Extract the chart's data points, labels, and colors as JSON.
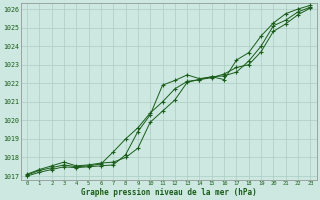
{
  "title": "Graphe pression niveau de la mer (hPa)",
  "bg_color": "#cce8e0",
  "grid_color": "#aaccc4",
  "line_color": "#1a5c1a",
  "marker_color": "#1a5c1a",
  "xlim": [
    -0.5,
    23.5
  ],
  "ylim": [
    1016.8,
    1026.3
  ],
  "xticks": [
    0,
    1,
    2,
    3,
    4,
    5,
    6,
    7,
    8,
    9,
    10,
    11,
    12,
    13,
    14,
    15,
    16,
    17,
    18,
    19,
    20,
    21,
    22,
    23
  ],
  "yticks": [
    1017,
    1018,
    1019,
    1020,
    1021,
    1022,
    1023,
    1024,
    1025,
    1026
  ],
  "series1": [
    1017.1,
    1017.35,
    1017.55,
    1017.75,
    1017.55,
    1017.6,
    1017.7,
    1017.75,
    1018.0,
    1018.5,
    1019.9,
    1020.5,
    1021.1,
    1022.05,
    1022.2,
    1022.35,
    1022.4,
    1022.6,
    1023.2,
    1024.0,
    1025.1,
    1025.4,
    1025.85,
    1026.1
  ],
  "series2": [
    1017.05,
    1017.3,
    1017.45,
    1017.6,
    1017.5,
    1017.55,
    1017.65,
    1018.3,
    1019.0,
    1019.6,
    1020.4,
    1021.0,
    1021.7,
    1022.1,
    1022.2,
    1022.3,
    1022.5,
    1022.85,
    1023.0,
    1023.7,
    1024.8,
    1025.2,
    1025.7,
    1026.05
  ],
  "series3": [
    1017.0,
    1017.2,
    1017.35,
    1017.5,
    1017.45,
    1017.5,
    1017.55,
    1017.6,
    1018.15,
    1019.4,
    1020.3,
    1021.9,
    1022.15,
    1022.45,
    1022.25,
    1022.35,
    1022.2,
    1023.25,
    1023.65,
    1024.55,
    1025.25,
    1025.75,
    1026.0,
    1026.2
  ]
}
